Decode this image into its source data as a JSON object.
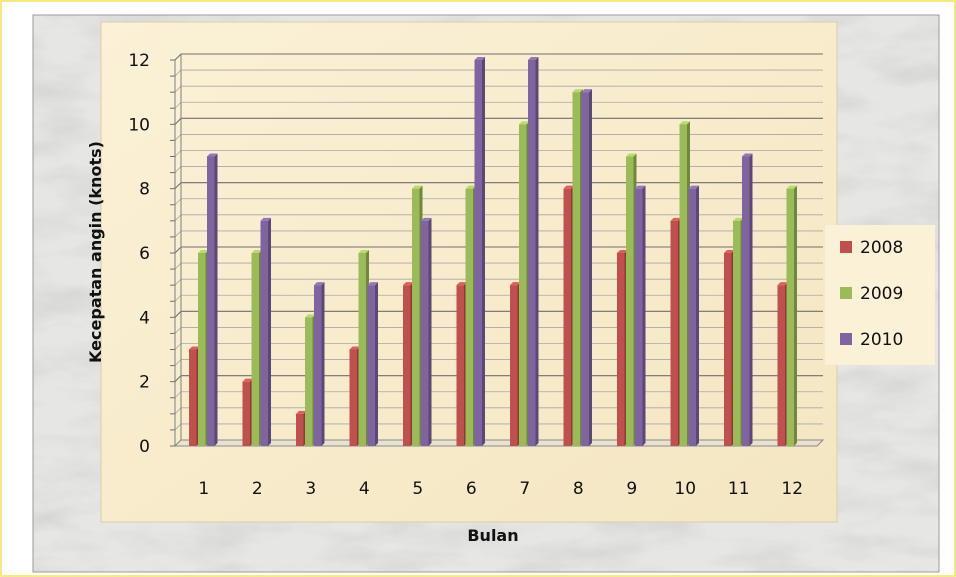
{
  "chart_data": {
    "type": "bar",
    "title": "",
    "xlabel": "Bulan",
    "ylabel": "Kecepatan angin (knots)",
    "ylim": [
      0,
      12
    ],
    "yticks": [
      "0",
      "2",
      "4",
      "6",
      "8",
      "10",
      "12"
    ],
    "categories": [
      "1",
      "2",
      "3",
      "4",
      "5",
      "6",
      "7",
      "8",
      "9",
      "10",
      "11",
      "12"
    ],
    "series": [
      {
        "name": "2008",
        "color": "#C0504D",
        "values": [
          3,
          2,
          1,
          3,
          5,
          5,
          5,
          8,
          6,
          7,
          6,
          5
        ]
      },
      {
        "name": "2009",
        "color": "#9BBB59",
        "values": [
          6,
          6,
          4,
          6,
          8,
          8,
          10,
          11,
          9,
          10,
          7,
          8
        ]
      },
      {
        "name": "2010",
        "color": "#8064A2",
        "values": [
          9,
          7,
          5,
          5,
          7,
          12,
          12,
          11,
          8,
          8,
          9,
          null
        ]
      }
    ],
    "grid": true,
    "legend": "right"
  }
}
